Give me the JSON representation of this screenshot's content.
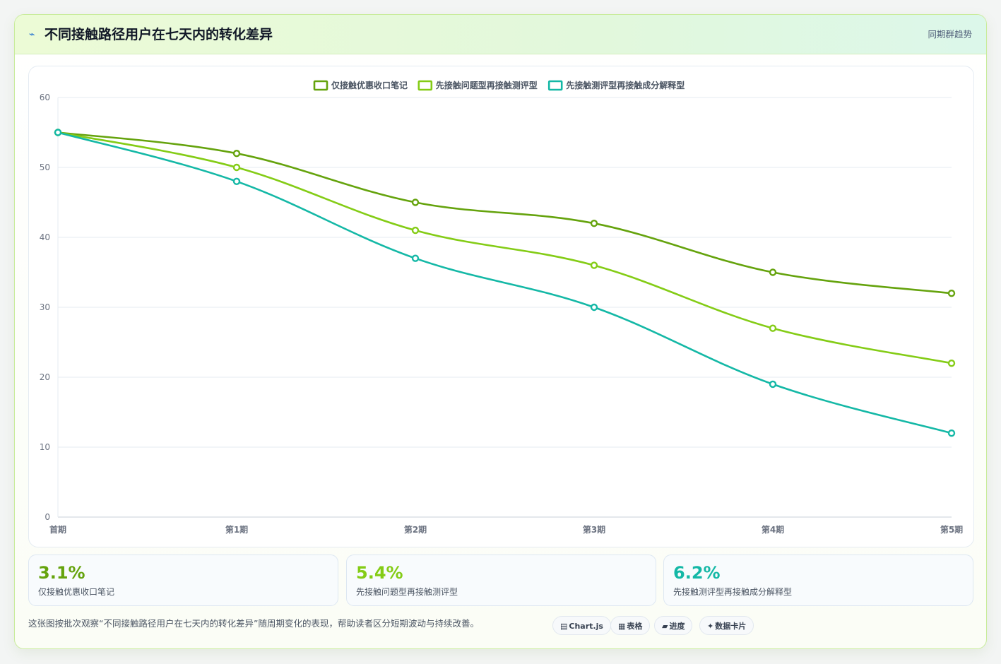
{
  "header": {
    "icon": "⌁",
    "title": "不同接触路径用户在七天内的转化差异",
    "tag": "同期群趋势"
  },
  "chart_data": {
    "type": "line",
    "categories": [
      "首期",
      "第1期",
      "第2期",
      "第3期",
      "第4期",
      "第5期"
    ],
    "series": [
      {
        "name": "仅接触优惠收口笔记",
        "color": "#65a30d",
        "values": [
          55,
          52,
          45,
          42,
          35,
          32
        ]
      },
      {
        "name": "先接触问题型再接触测评型",
        "color": "#84cc16",
        "values": [
          55,
          50,
          41,
          36,
          27,
          22
        ]
      },
      {
        "name": "先接触测评型再接触成分解释型",
        "color": "#14b8a6",
        "values": [
          55,
          48,
          37,
          30,
          19,
          12
        ]
      }
    ],
    "yticks": [
      0,
      10,
      20,
      30,
      40,
      50,
      60
    ],
    "ylim": [
      0,
      60
    ],
    "grid": true,
    "legend": "top-center",
    "title": "",
    "xlabel": "",
    "ylabel": ""
  },
  "stats": [
    {
      "value": "3.1%",
      "label": "仅接触优惠收口笔记",
      "color": "#65a30d"
    },
    {
      "value": "5.4%",
      "label": "先接触问题型再接触测评型",
      "color": "#84cc16"
    },
    {
      "value": "6.2%",
      "label": "先接触测评型再接触成分解释型",
      "color": "#14b8a6"
    }
  ],
  "footer": {
    "note": "这张图按批次观察“不同接触路径用户在七天内的转化差异”随周期变化的表现，帮助读者区分短期波动与持续改善。",
    "pills": [
      {
        "icon": "▤",
        "label": "Chart.js"
      },
      {
        "icon": "▦",
        "label": "表格"
      },
      {
        "icon": "▰",
        "label": "进度"
      },
      {
        "icon": "✦",
        "label": "数据卡片"
      }
    ]
  }
}
